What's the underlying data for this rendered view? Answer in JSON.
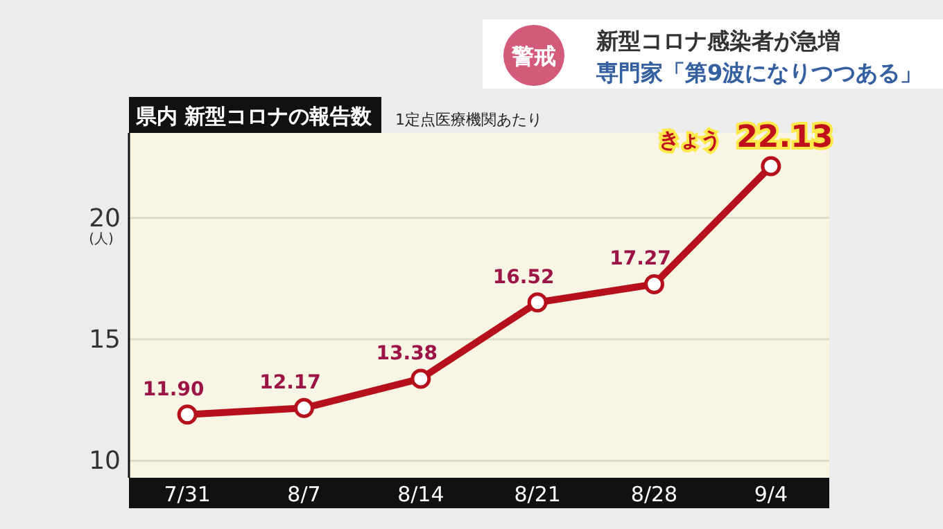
{
  "chart_data": {
    "type": "line",
    "title": "県内 新型コロナの報告数",
    "subtitle": "1定点医療機関あたり",
    "ylabel": "(人)",
    "categories": [
      "7/31",
      "8/7",
      "8/14",
      "8/21",
      "8/28",
      "9/4"
    ],
    "series": [
      {
        "color": "#b5101c",
        "values": [
          11.9,
          12.17,
          13.38,
          16.52,
          17.27,
          22.13
        ]
      }
    ],
    "value_labels": [
      "11.90",
      "12.17",
      "13.38",
      "16.52",
      "17.27",
      "22.13"
    ],
    "ylim": [
      9.3,
      23.5
    ],
    "yticks": [
      10,
      15,
      20
    ],
    "grid": "y",
    "marker": "circle",
    "annotations": [
      "警戒",
      "新型コロナ感染者が急増",
      "専門家「第9波になりつつある」",
      {
        "text": "きょう",
        "x": "9/4",
        "y": 22.13
      }
    ]
  }
}
